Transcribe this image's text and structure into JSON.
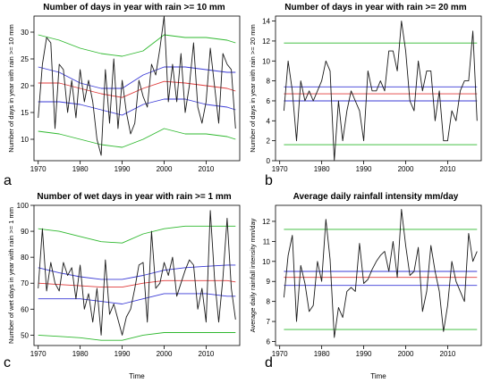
{
  "chart_data": [
    {
      "type": "line",
      "letter": "a",
      "title": "Number of days in year with rain >= 10 mm",
      "xlabel": "",
      "ylabel": "Number of days in year with rain >= 10 mm",
      "xlim": [
        1969,
        2018
      ],
      "ylim": [
        6,
        33
      ],
      "xticks": [
        1970,
        1980,
        1990,
        2000,
        2010
      ],
      "yticks": [
        10,
        15,
        20,
        25,
        30
      ],
      "series": [
        {
          "color": "#1a1a1a",
          "x": [
            1970,
            1971,
            1972,
            1973,
            1974,
            1975,
            1976,
            1977,
            1978,
            1979,
            1980,
            1981,
            1982,
            1983,
            1984,
            1985,
            1986,
            1987,
            1988,
            1989,
            1990,
            1991,
            1992,
            1993,
            1994,
            1995,
            1996,
            1997,
            1998,
            1999,
            2000,
            2001,
            2002,
            2003,
            2004,
            2005,
            2006,
            2007,
            2008,
            2009,
            2010,
            2011,
            2012,
            2013,
            2014,
            2015,
            2016,
            2017
          ],
          "y": [
            14,
            24,
            29,
            28,
            12,
            24,
            23,
            15,
            21,
            14,
            23,
            17,
            21,
            17,
            10,
            7,
            23,
            13,
            25,
            12,
            21,
            15,
            11,
            13,
            21,
            18,
            16,
            24,
            22,
            27,
            33,
            17,
            24,
            17,
            26,
            15,
            20,
            28,
            16,
            13,
            17,
            27,
            20,
            13,
            26,
            24,
            23,
            12
          ]
        },
        {
          "color": "#e03b3b",
          "x": [
            1970,
            1975,
            1980,
            1985,
            1990,
            1995,
            2000,
            2005,
            2010,
            2015,
            2017
          ],
          "y": [
            20.5,
            20.5,
            19.5,
            18.5,
            17.8,
            19.5,
            20.8,
            20.5,
            20,
            19.5,
            19
          ]
        },
        {
          "color": "#3a3ad6",
          "x": [
            1970,
            1975,
            1980,
            1985,
            1990,
            1995,
            2000,
            2005,
            2010,
            2015,
            2017
          ],
          "y": [
            23.5,
            22.5,
            20.5,
            19.5,
            19.5,
            22,
            23.5,
            23.5,
            23,
            22.5,
            22.5
          ]
        },
        {
          "color": "#3a3ad6",
          "x": [
            1970,
            1975,
            1980,
            1985,
            1990,
            1995,
            2000,
            2005,
            2010,
            2015,
            2017
          ],
          "y": [
            17,
            17,
            16.5,
            15.5,
            14.5,
            16.5,
            17.5,
            17.5,
            16.5,
            16,
            15.5
          ]
        },
        {
          "color": "#2eb82e",
          "x": [
            1970,
            1975,
            1980,
            1985,
            1990,
            1995,
            2000,
            2005,
            2010,
            2015,
            2017
          ],
          "y": [
            29.5,
            28.5,
            27,
            26,
            25.5,
            26.5,
            29.5,
            29,
            29,
            28.5,
            28
          ]
        },
        {
          "color": "#2eb82e",
          "x": [
            1970,
            1975,
            1980,
            1985,
            1990,
            1995,
            2000,
            2005,
            2010,
            2015,
            2017
          ],
          "y": [
            11.5,
            11,
            10,
            9,
            8.5,
            10,
            12,
            11,
            11,
            10.5,
            10
          ]
        }
      ]
    },
    {
      "type": "line",
      "letter": "b",
      "title": "Number of days in year with rain >= 20 mm",
      "xlabel": "",
      "ylabel": "Number of days in year with rain >= 20 mm",
      "xlim": [
        1969,
        2018
      ],
      "ylim": [
        0,
        14.5
      ],
      "xticks": [
        1970,
        1980,
        1990,
        2000,
        2010
      ],
      "yticks": [
        0,
        2,
        4,
        6,
        8,
        10,
        12,
        14
      ],
      "series": [
        {
          "color": "#1a1a1a",
          "x": [
            1971,
            1972,
            1973,
            1974,
            1975,
            1976,
            1977,
            1978,
            1979,
            1980,
            1981,
            1982,
            1983,
            1984,
            1985,
            1986,
            1987,
            1988,
            1989,
            1990,
            1991,
            1992,
            1993,
            1994,
            1995,
            1996,
            1997,
            1998,
            1999,
            2000,
            2001,
            2002,
            2003,
            2004,
            2005,
            2006,
            2007,
            2008,
            2009,
            2010,
            2011,
            2012,
            2013,
            2014,
            2015,
            2016,
            2017
          ],
          "y": [
            5,
            10,
            7,
            2,
            8,
            6,
            7,
            6,
            7,
            8,
            10,
            9,
            0,
            6,
            2,
            5,
            7,
            6,
            5,
            2,
            9,
            7,
            7,
            8,
            7,
            11,
            11,
            9,
            14,
            11,
            6,
            5,
            10,
            7,
            9,
            9,
            4,
            7,
            2,
            2,
            5,
            4,
            7,
            8,
            8,
            13,
            4
          ]
        },
        {
          "color": "#3a3ad6",
          "x": [
            1971,
            2017
          ],
          "y": [
            7.4,
            7.4
          ]
        },
        {
          "color": "#e03b3b",
          "x": [
            1971,
            2017
          ],
          "y": [
            6.7,
            6.7
          ]
        },
        {
          "color": "#3a3ad6",
          "x": [
            1971,
            2017
          ],
          "y": [
            6.0,
            6.0
          ]
        },
        {
          "color": "#2eb82e",
          "x": [
            1971,
            2017
          ],
          "y": [
            11.8,
            11.8
          ]
        },
        {
          "color": "#2eb82e",
          "x": [
            1971,
            2017
          ],
          "y": [
            1.6,
            1.6
          ]
        }
      ]
    },
    {
      "type": "line",
      "letter": "c",
      "title": "Number of wet days in year with rain >= 1 mm",
      "xlabel": "Time",
      "ylabel": "Number of wet days in year with rain >= 1 mm",
      "xlim": [
        1969,
        2018
      ],
      "ylim": [
        46,
        100
      ],
      "xticks": [
        1970,
        1980,
        1990,
        2000,
        2010
      ],
      "yticks": [
        50,
        60,
        70,
        80,
        90,
        100
      ],
      "series": [
        {
          "color": "#1a1a1a",
          "x": [
            1970,
            1971,
            1972,
            1973,
            1974,
            1975,
            1976,
            1977,
            1978,
            1979,
            1980,
            1981,
            1982,
            1983,
            1984,
            1985,
            1986,
            1987,
            1988,
            1989,
            1990,
            1991,
            1992,
            1993,
            1994,
            1995,
            1996,
            1997,
            1998,
            1999,
            2000,
            2001,
            2002,
            2003,
            2004,
            2005,
            2006,
            2007,
            2008,
            2009,
            2010,
            2011,
            2012,
            2013,
            2014,
            2015,
            2016,
            2017
          ],
          "y": [
            68,
            91,
            67,
            78,
            70,
            67,
            78,
            73,
            76,
            64,
            77,
            60,
            66,
            55,
            68,
            50,
            79,
            58,
            62,
            56,
            50,
            57,
            60,
            68,
            77,
            78,
            55,
            90,
            68,
            70,
            78,
            73,
            80,
            65,
            70,
            75,
            79,
            77,
            60,
            68,
            55,
            98,
            72,
            55,
            72,
            95,
            68,
            56
          ]
        },
        {
          "color": "#e03b3b",
          "x": [
            1970,
            1975,
            1980,
            1985,
            1990,
            1995,
            2000,
            2005,
            2010,
            2015,
            2017
          ],
          "y": [
            70,
            69.5,
            69,
            68.5,
            68.5,
            70,
            71,
            71,
            71,
            71,
            70.5
          ]
        },
        {
          "color": "#3a3ad6",
          "x": [
            1970,
            1975,
            1980,
            1985,
            1990,
            1995,
            2000,
            2005,
            2010,
            2015,
            2017
          ],
          "y": [
            76,
            74,
            72.5,
            71.5,
            71.5,
            73,
            75,
            76,
            76.5,
            77,
            77
          ]
        },
        {
          "color": "#3a3ad6",
          "x": [
            1970,
            1975,
            1980,
            1985,
            1990,
            1995,
            2000,
            2005,
            2010,
            2015,
            2017
          ],
          "y": [
            64,
            64,
            64,
            63,
            62,
            64,
            66,
            66,
            66,
            65,
            65
          ]
        },
        {
          "color": "#2eb82e",
          "x": [
            1970,
            1975,
            1980,
            1985,
            1990,
            1995,
            2000,
            2005,
            2010,
            2015,
            2017
          ],
          "y": [
            91,
            90,
            88,
            86,
            85.5,
            89,
            91,
            92,
            92,
            92,
            92
          ]
        },
        {
          "color": "#2eb82e",
          "x": [
            1970,
            1975,
            1980,
            1985,
            1990,
            1995,
            2000,
            2005,
            2010,
            2015,
            2017
          ],
          "y": [
            50,
            49.5,
            49,
            48,
            48,
            50,
            51,
            51,
            51,
            51,
            51
          ]
        }
      ]
    },
    {
      "type": "line",
      "letter": "d",
      "title": "Average daily rainfall intensity mm/day",
      "xlabel": "Time",
      "ylabel": "Average daily rainfall intensity mm/day",
      "xlim": [
        1969,
        2018
      ],
      "ylim": [
        5.8,
        12.8
      ],
      "xticks": [
        1970,
        1980,
        1990,
        2000,
        2010
      ],
      "yticks": [
        6,
        7,
        8,
        9,
        10,
        11,
        12
      ],
      "series": [
        {
          "color": "#1a1a1a",
          "x": [
            1971,
            1972,
            1973,
            1974,
            1975,
            1976,
            1977,
            1978,
            1979,
            1980,
            1981,
            1982,
            1983,
            1984,
            1985,
            1986,
            1987,
            1988,
            1989,
            1990,
            1991,
            1992,
            1993,
            1994,
            1995,
            1996,
            1997,
            1998,
            1999,
            2000,
            2001,
            2002,
            2003,
            2004,
            2005,
            2006,
            2007,
            2008,
            2009,
            2010,
            2011,
            2012,
            2013,
            2014,
            2015,
            2016,
            2017
          ],
          "y": [
            8.2,
            10.3,
            11.3,
            7.0,
            9.8,
            8.9,
            7.5,
            7.8,
            10.0,
            9.0,
            12.1,
            10.1,
            6.2,
            7.7,
            7.2,
            8.5,
            8.7,
            8.5,
            10.9,
            8.9,
            9.1,
            9.6,
            10.0,
            10.3,
            10.5,
            9.5,
            11.0,
            9.2,
            12.6,
            10.8,
            9.3,
            9.5,
            10.7,
            7.5,
            8.5,
            10.8,
            9.5,
            8.5,
            6.5,
            7.8,
            10.0,
            9.0,
            8.5,
            8.0,
            11.4,
            10.0,
            10.5
          ]
        },
        {
          "color": "#3a3ad6",
          "x": [
            1971,
            2017
          ],
          "y": [
            9.5,
            9.5
          ]
        },
        {
          "color": "#e03b3b",
          "x": [
            1971,
            2017
          ],
          "y": [
            9.2,
            9.2
          ]
        },
        {
          "color": "#3a3ad6",
          "x": [
            1971,
            2017
          ],
          "y": [
            8.8,
            8.8
          ]
        },
        {
          "color": "#2eb82e",
          "x": [
            1971,
            2017
          ],
          "y": [
            11.6,
            11.6
          ]
        },
        {
          "color": "#2eb82e",
          "x": [
            1971,
            2017
          ],
          "y": [
            6.6,
            6.6
          ]
        }
      ]
    }
  ]
}
